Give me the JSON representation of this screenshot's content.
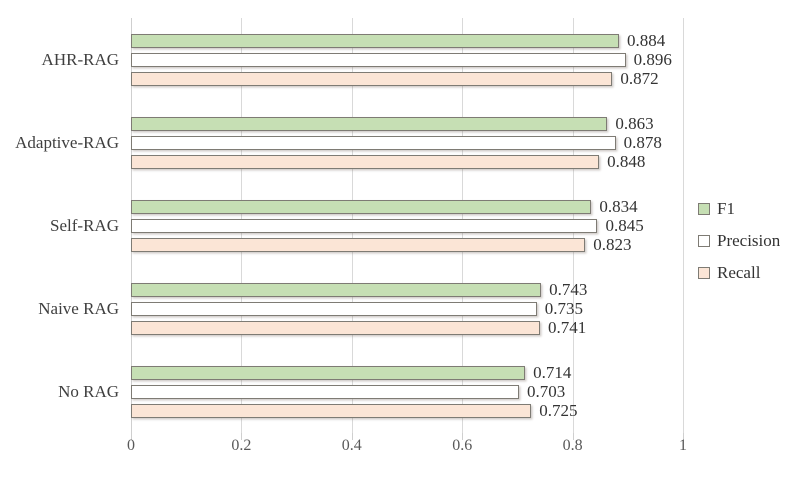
{
  "chart_data": {
    "type": "bar",
    "orientation": "horizontal",
    "title": "",
    "xlabel": "",
    "ylabel": "",
    "xlim": [
      0,
      1
    ],
    "x_ticks": [
      {
        "value": 0,
        "label": "0"
      },
      {
        "value": 0.2,
        "label": "0.2"
      },
      {
        "value": 0.4,
        "label": "0.4"
      },
      {
        "value": 0.6,
        "label": "0.6"
      },
      {
        "value": 0.8,
        "label": "0.8"
      },
      {
        "value": 1,
        "label": "1"
      }
    ],
    "grid": true,
    "legend_position": "right",
    "categories": [
      "AHR-RAG",
      "Adaptive-RAG",
      "Self-RAG",
      "Naive RAG",
      "No RAG"
    ],
    "series": [
      {
        "name": "F1",
        "color": "#c6dfb4",
        "values": [
          0.884,
          0.863,
          0.834,
          0.743,
          0.714
        ]
      },
      {
        "name": "Precision",
        "color": "#ffffff",
        "values": [
          0.896,
          0.878,
          0.845,
          0.735,
          0.703
        ]
      },
      {
        "name": "Recall",
        "color": "#fbe5d6",
        "values": [
          0.872,
          0.848,
          0.823,
          0.741,
          0.725
        ]
      }
    ],
    "value_labels": [
      [
        "0.884",
        "0.896",
        "0.872"
      ],
      [
        "0.863",
        "0.878",
        "0.848"
      ],
      [
        "0.834",
        "0.845",
        "0.823"
      ],
      [
        "0.743",
        "0.735",
        "0.741"
      ],
      [
        "0.714",
        "0.703",
        "0.725"
      ]
    ],
    "colors": {
      "bar_border": "#7e7b74",
      "gridline": "#d9d9d9",
      "axis_text": "#595959",
      "label_text": "#333333"
    }
  }
}
